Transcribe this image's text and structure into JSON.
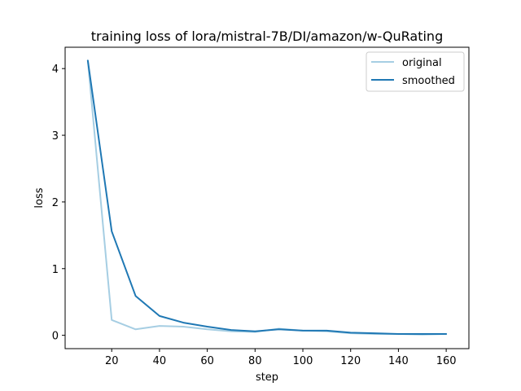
{
  "chart_data": {
    "type": "line",
    "title": "training loss of lora/mistral-7B/DI/amazon/w-QuRating",
    "xlabel": "step",
    "ylabel": "loss",
    "xlim": [
      0.5,
      169.5
    ],
    "ylim": [
      -0.2,
      4.32
    ],
    "xticks": [
      20,
      40,
      60,
      80,
      100,
      120,
      140,
      160
    ],
    "yticks": [
      0,
      1,
      2,
      3,
      4
    ],
    "grid": false,
    "legend_position": "top-right",
    "x": [
      10,
      20,
      30,
      40,
      50,
      60,
      70,
      80,
      90,
      100,
      110,
      120,
      130,
      140,
      150,
      160
    ],
    "series": [
      {
        "name": "original",
        "color": "#a6cee3",
        "values": [
          4.12,
          0.23,
          0.09,
          0.14,
          0.13,
          0.09,
          0.06,
          0.05,
          0.1,
          0.07,
          0.06,
          0.03,
          0.02,
          0.02,
          0.01,
          0.02
        ]
      },
      {
        "name": "smoothed",
        "color": "#1f78b4",
        "values": [
          4.12,
          1.56,
          0.59,
          0.29,
          0.19,
          0.13,
          0.08,
          0.06,
          0.09,
          0.07,
          0.07,
          0.04,
          0.03,
          0.02,
          0.02,
          0.02
        ]
      }
    ]
  }
}
